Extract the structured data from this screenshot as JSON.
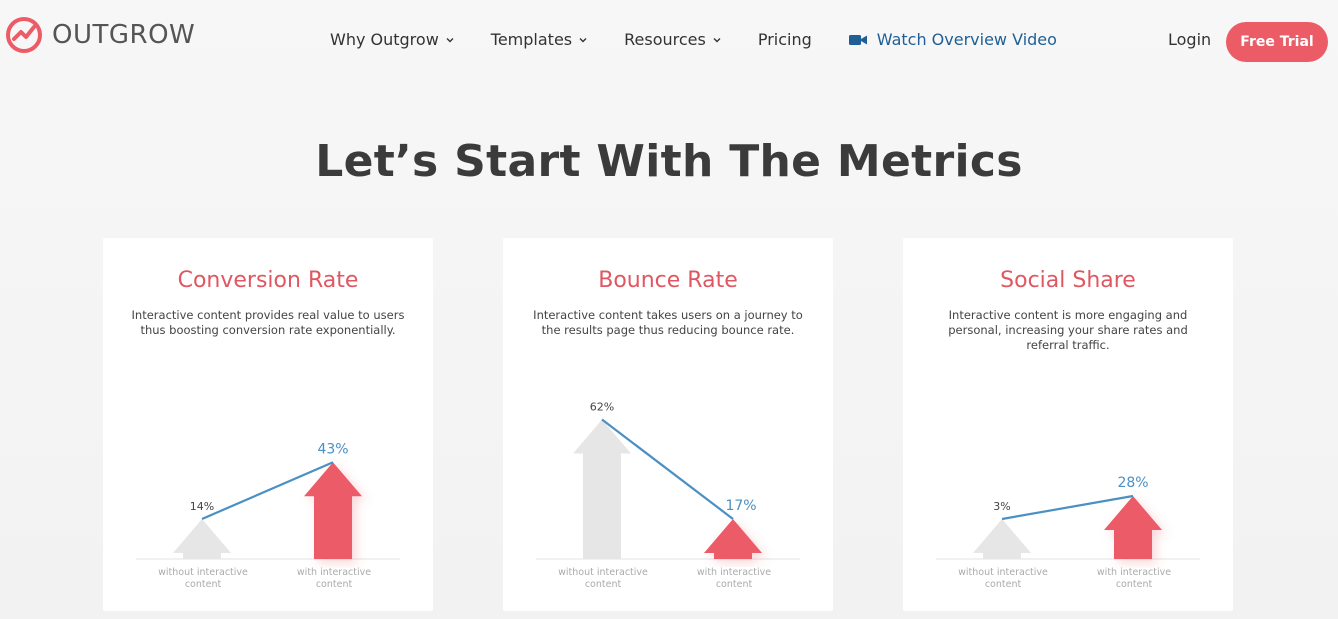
{
  "brand": {
    "name": "OUTGROW",
    "accent": "#ec5c67",
    "link": "#1f5f96"
  },
  "nav": {
    "items": [
      {
        "label": "Why Outgrow",
        "dropdown": true
      },
      {
        "label": "Templates",
        "dropdown": true
      },
      {
        "label": "Resources",
        "dropdown": true
      },
      {
        "label": "Pricing",
        "dropdown": false
      }
    ],
    "video_label": "Watch Overview Video",
    "login_label": "Login",
    "trial_label": "Free Trial"
  },
  "page": {
    "title": "Let’s Start With The Metrics"
  },
  "cards": [
    {
      "title": "Conversion Rate",
      "desc": "Interactive content provides real value to users thus boosting conversion rate exponentially."
    },
    {
      "title": "Bounce Rate",
      "desc": "Interactive content takes users on a journey to the results page thus reducing bounce rate."
    },
    {
      "title": "Social Share",
      "desc": "Interactive content is more engaging and personal, increasing your share rates and referral traffic."
    }
  ],
  "chart_data": [
    {
      "type": "bar",
      "categories": [
        "without interactive content",
        "with interactive content"
      ],
      "values": [
        14,
        43
      ],
      "data_labels": [
        "14%",
        "43%"
      ],
      "colors": [
        "#e6e6e6",
        "#ec5c67"
      ],
      "line_color": "#4a90c2"
    },
    {
      "type": "bar",
      "categories": [
        "without interactive content",
        "with interactive content"
      ],
      "values": [
        62,
        17
      ],
      "data_labels": [
        "62%",
        "17%"
      ],
      "colors": [
        "#e6e6e6",
        "#ec5c67"
      ],
      "line_color": "#4a90c2"
    },
    {
      "type": "bar",
      "categories": [
        "without interactive content",
        "with interactive content"
      ],
      "values": [
        3,
        28
      ],
      "data_labels": [
        "3%",
        "28%"
      ],
      "colors": [
        "#e6e6e6",
        "#ec5c67"
      ],
      "line_color": "#4a90c2"
    }
  ]
}
